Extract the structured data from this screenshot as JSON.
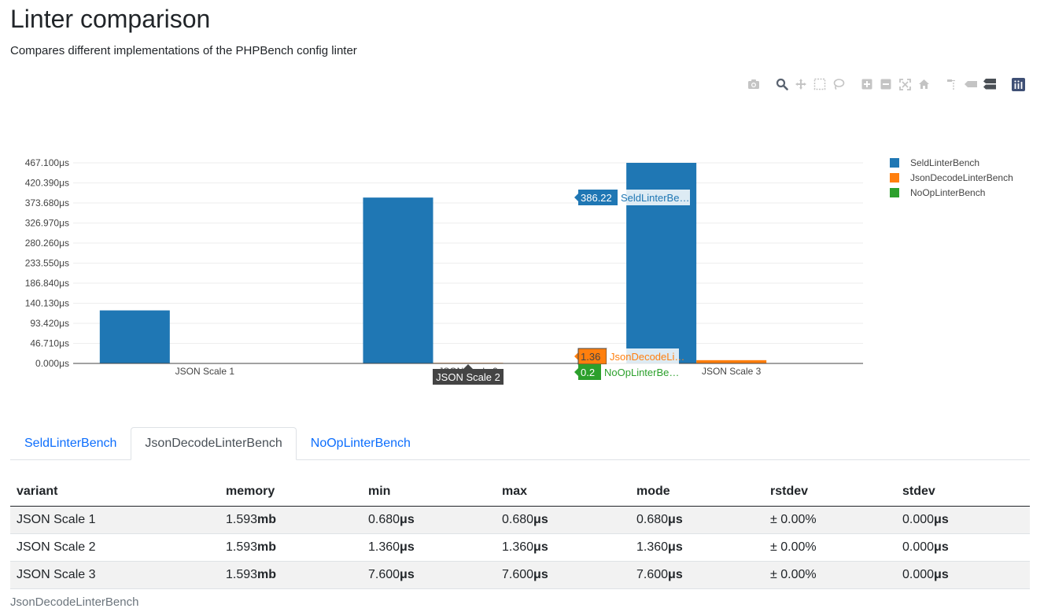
{
  "page": {
    "title": "Linter comparison",
    "subtitle": "Compares different implementations of the PHPBench config linter"
  },
  "modebar": {
    "icons": [
      "camera-icon",
      "zoom-icon",
      "pan-icon",
      "box-select-icon",
      "lasso-icon",
      "zoom-in-icon",
      "zoom-out-icon",
      "autoscale-icon",
      "reset-axes-icon",
      "spike-lines-icon",
      "hover-closest-icon",
      "hover-compare-icon",
      "plotly-logo-icon"
    ]
  },
  "chart_data": {
    "type": "bar",
    "categories": [
      "JSON Scale 1",
      "JSON Scale 2",
      "JSON Scale 3"
    ],
    "series": [
      {
        "name": "SeldLinterBench",
        "color": "#1f77b4",
        "values": [
          123.5,
          386.22,
          467.1
        ]
      },
      {
        "name": "JsonDecodeLinterBench",
        "color": "#ff7f0e",
        "values": [
          0.68,
          1.36,
          7.6
        ]
      },
      {
        "name": "NoOpLinterBench",
        "color": "#2ca02c",
        "values": [
          0.1,
          0.2,
          0.3
        ]
      }
    ],
    "ylim": [
      0,
      467.1
    ],
    "yticks": [
      {
        "value": 0,
        "label": "0.000μs"
      },
      {
        "value": 46.71,
        "label": "46.710μs"
      },
      {
        "value": 93.42,
        "label": "93.420μs"
      },
      {
        "value": 140.13,
        "label": "140.130μs"
      },
      {
        "value": 186.84,
        "label": "186.840μs"
      },
      {
        "value": 233.55,
        "label": "233.550μs"
      },
      {
        "value": 280.26,
        "label": "280.260μs"
      },
      {
        "value": 326.97,
        "label": "326.970μs"
      },
      {
        "value": 373.68,
        "label": "373.680μs"
      },
      {
        "value": 420.39,
        "label": "420.390μs"
      },
      {
        "value": 467.1,
        "label": "467.100μs"
      }
    ],
    "grid": true,
    "legend_position": "top-right",
    "hover": {
      "category_label": "JSON Scale 2",
      "labels": [
        {
          "series": 0,
          "value": "386.22",
          "name": "SeldLinterBe…"
        },
        {
          "series": 1,
          "value": "1.36",
          "name": "JsonDecodeLi…"
        },
        {
          "series": 2,
          "value": "0.2",
          "name": "NoOpLinterBe…"
        }
      ]
    }
  },
  "tabs": [
    {
      "label": "SeldLinterBench",
      "active": false
    },
    {
      "label": "JsonDecodeLinterBench",
      "active": true
    },
    {
      "label": "NoOpLinterBench",
      "active": false
    }
  ],
  "table": {
    "headers": [
      "variant",
      "memory",
      "min",
      "max",
      "mode",
      "rstdev",
      "stdev"
    ],
    "rows": [
      [
        {
          "v": "JSON Scale 1"
        },
        {
          "v": "1.593",
          "u": "mb"
        },
        {
          "v": "0.680",
          "u": "μs"
        },
        {
          "v": "0.680",
          "u": "μs"
        },
        {
          "v": "0.680",
          "u": "μs"
        },
        {
          "v": "± 0.00%"
        },
        {
          "v": "0.000",
          "u": "μs"
        }
      ],
      [
        {
          "v": "JSON Scale 2"
        },
        {
          "v": "1.593",
          "u": "mb"
        },
        {
          "v": "1.360",
          "u": "μs"
        },
        {
          "v": "1.360",
          "u": "μs"
        },
        {
          "v": "1.360",
          "u": "μs"
        },
        {
          "v": "± 0.00%"
        },
        {
          "v": "0.000",
          "u": "μs"
        }
      ],
      [
        {
          "v": "JSON Scale 3"
        },
        {
          "v": "1.593",
          "u": "mb"
        },
        {
          "v": "7.600",
          "u": "μs"
        },
        {
          "v": "7.600",
          "u": "μs"
        },
        {
          "v": "7.600",
          "u": "μs"
        },
        {
          "v": "± 0.00%"
        },
        {
          "v": "0.000",
          "u": "μs"
        }
      ]
    ],
    "caption": "JsonDecodeLinterBench"
  }
}
